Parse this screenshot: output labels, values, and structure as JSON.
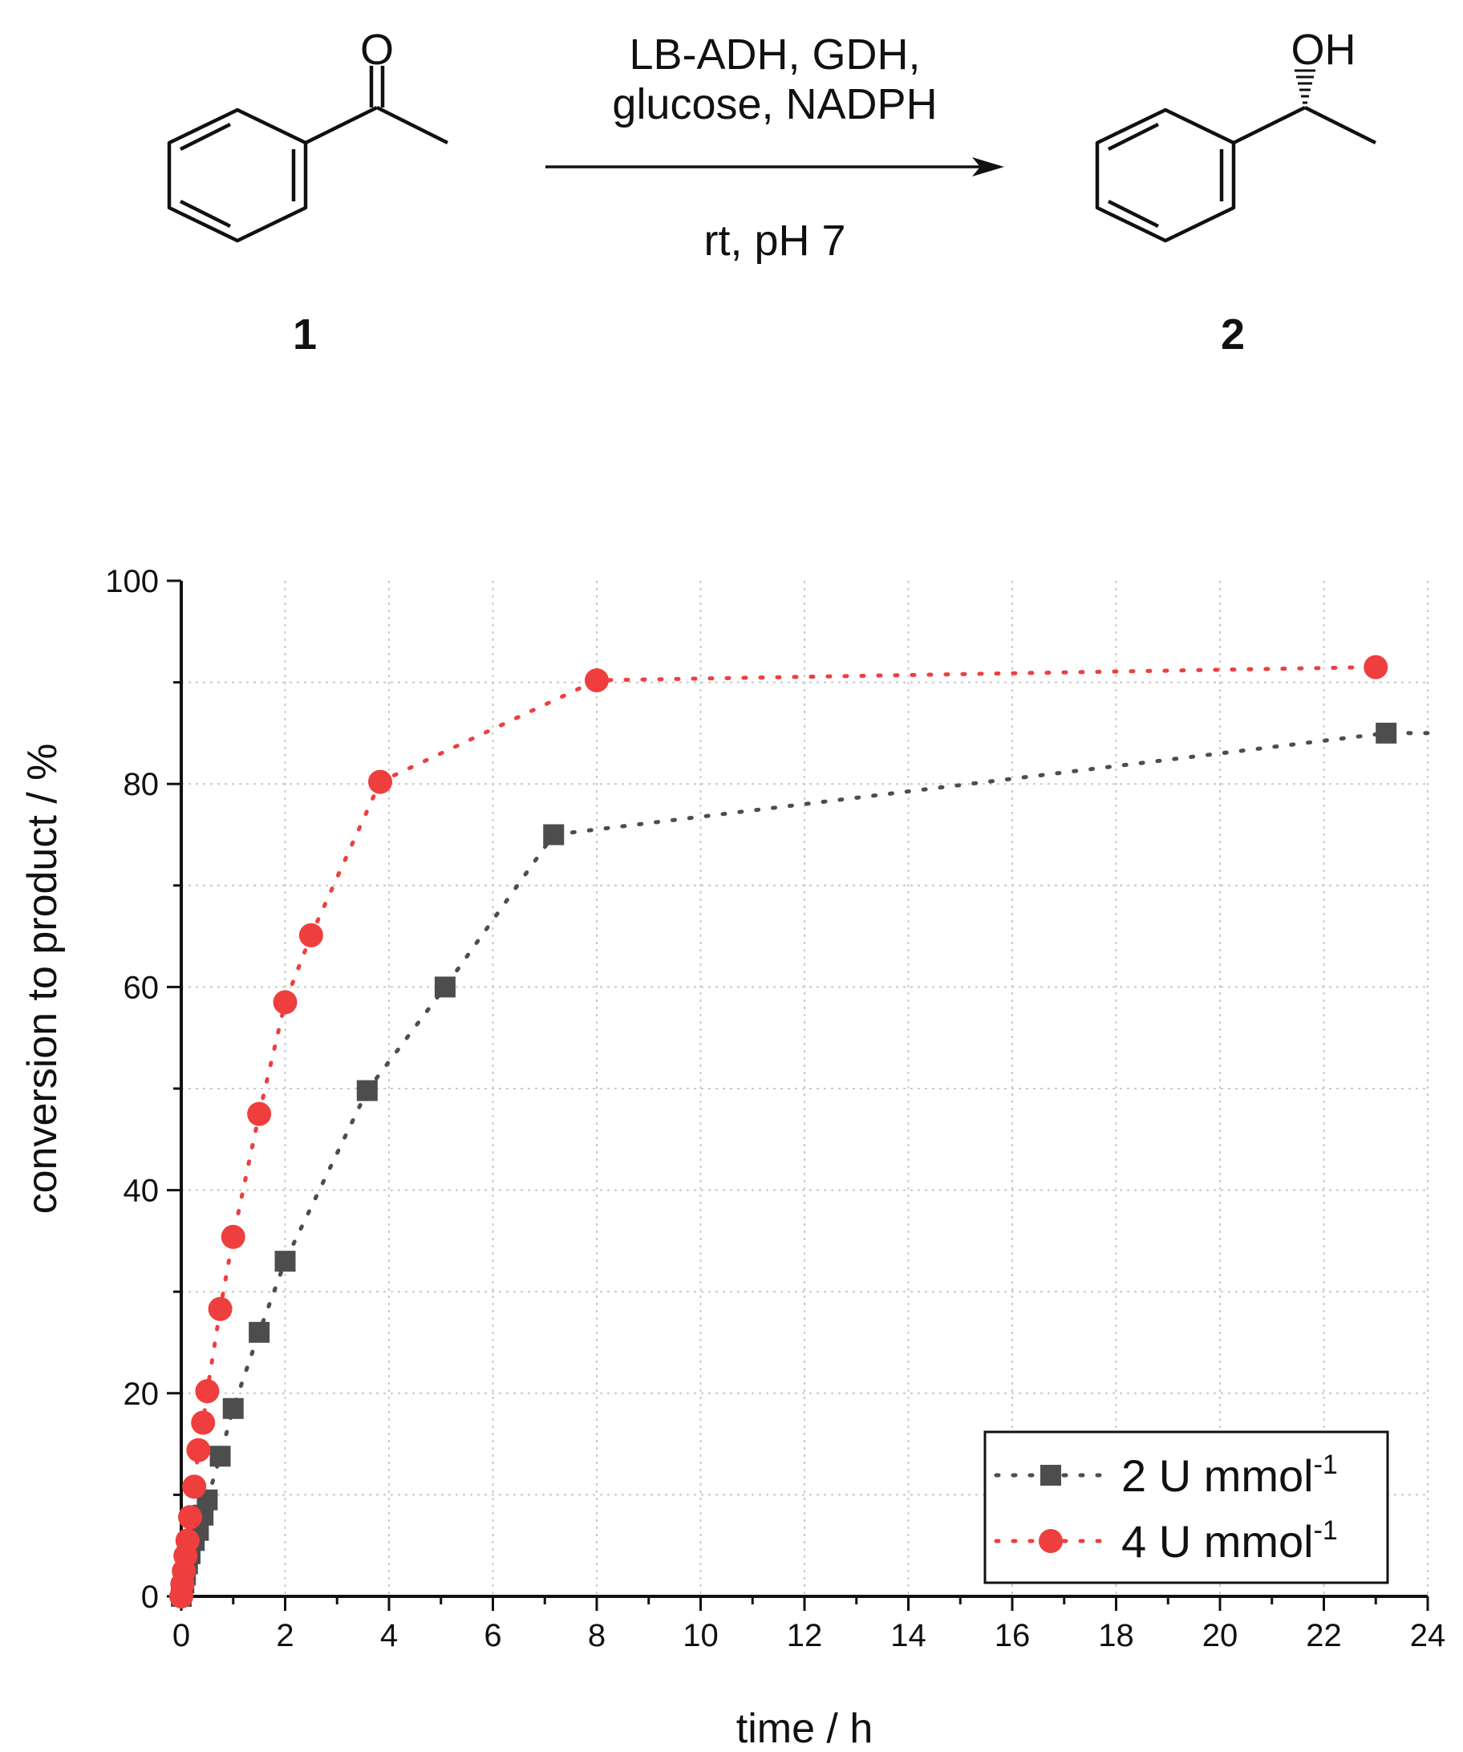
{
  "scheme": {
    "reactant_carbonyl": "O",
    "product_hydroxyl": "OH",
    "conditions_line1": "LB-ADH, GDH,",
    "conditions_line2": "glucose, NADPH",
    "conditions_below": "rt, pH 7",
    "reactant_label": "1",
    "product_label": "2"
  },
  "chart_data": {
    "type": "scatter",
    "xlabel": "time / h",
    "ylabel": "conversion to product / %",
    "xlim": [
      0,
      24
    ],
    "ylim": [
      0,
      100
    ],
    "xticks": [
      0,
      2,
      4,
      6,
      8,
      10,
      12,
      14,
      16,
      18,
      20,
      22,
      24
    ],
    "yticks": [
      0,
      20,
      40,
      60,
      80,
      100
    ],
    "grid": true,
    "legend_position": "bottom-right",
    "series": [
      {
        "name": "2 U mmol",
        "name_superscript": "-1",
        "color": "#4d4d4d",
        "marker": "square",
        "line": "dotted",
        "x": [
          0,
          0.02,
          0.05,
          0.08,
          0.12,
          0.17,
          0.25,
          0.33,
          0.42,
          0.5,
          0.75,
          1.0,
          1.5,
          2.0,
          3.58,
          5.08,
          7.17,
          23.2
        ],
        "y": [
          0,
          0.6,
          1.3,
          2.1,
          3.2,
          4.2,
          5.5,
          6.5,
          8.0,
          9.5,
          13.8,
          18.5,
          26.0,
          33.0,
          49.8,
          60.0,
          75.0,
          85.0
        ],
        "line_end": [
          24,
          85.0
        ]
      },
      {
        "name": "4 U mmol",
        "name_superscript": "-1",
        "color": "#ef3e3e",
        "marker": "circle",
        "line": "dotted",
        "x": [
          0,
          0.02,
          0.05,
          0.08,
          0.12,
          0.17,
          0.25,
          0.33,
          0.42,
          0.5,
          0.75,
          1.0,
          1.5,
          2.0,
          2.5,
          3.83,
          8.0,
          23.0
        ],
        "y": [
          0,
          1.2,
          2.5,
          4.0,
          5.5,
          7.8,
          10.8,
          14.4,
          17.1,
          20.2,
          28.3,
          35.4,
          47.5,
          58.5,
          65.1,
          80.2,
          90.2,
          91.5
        ]
      }
    ]
  }
}
